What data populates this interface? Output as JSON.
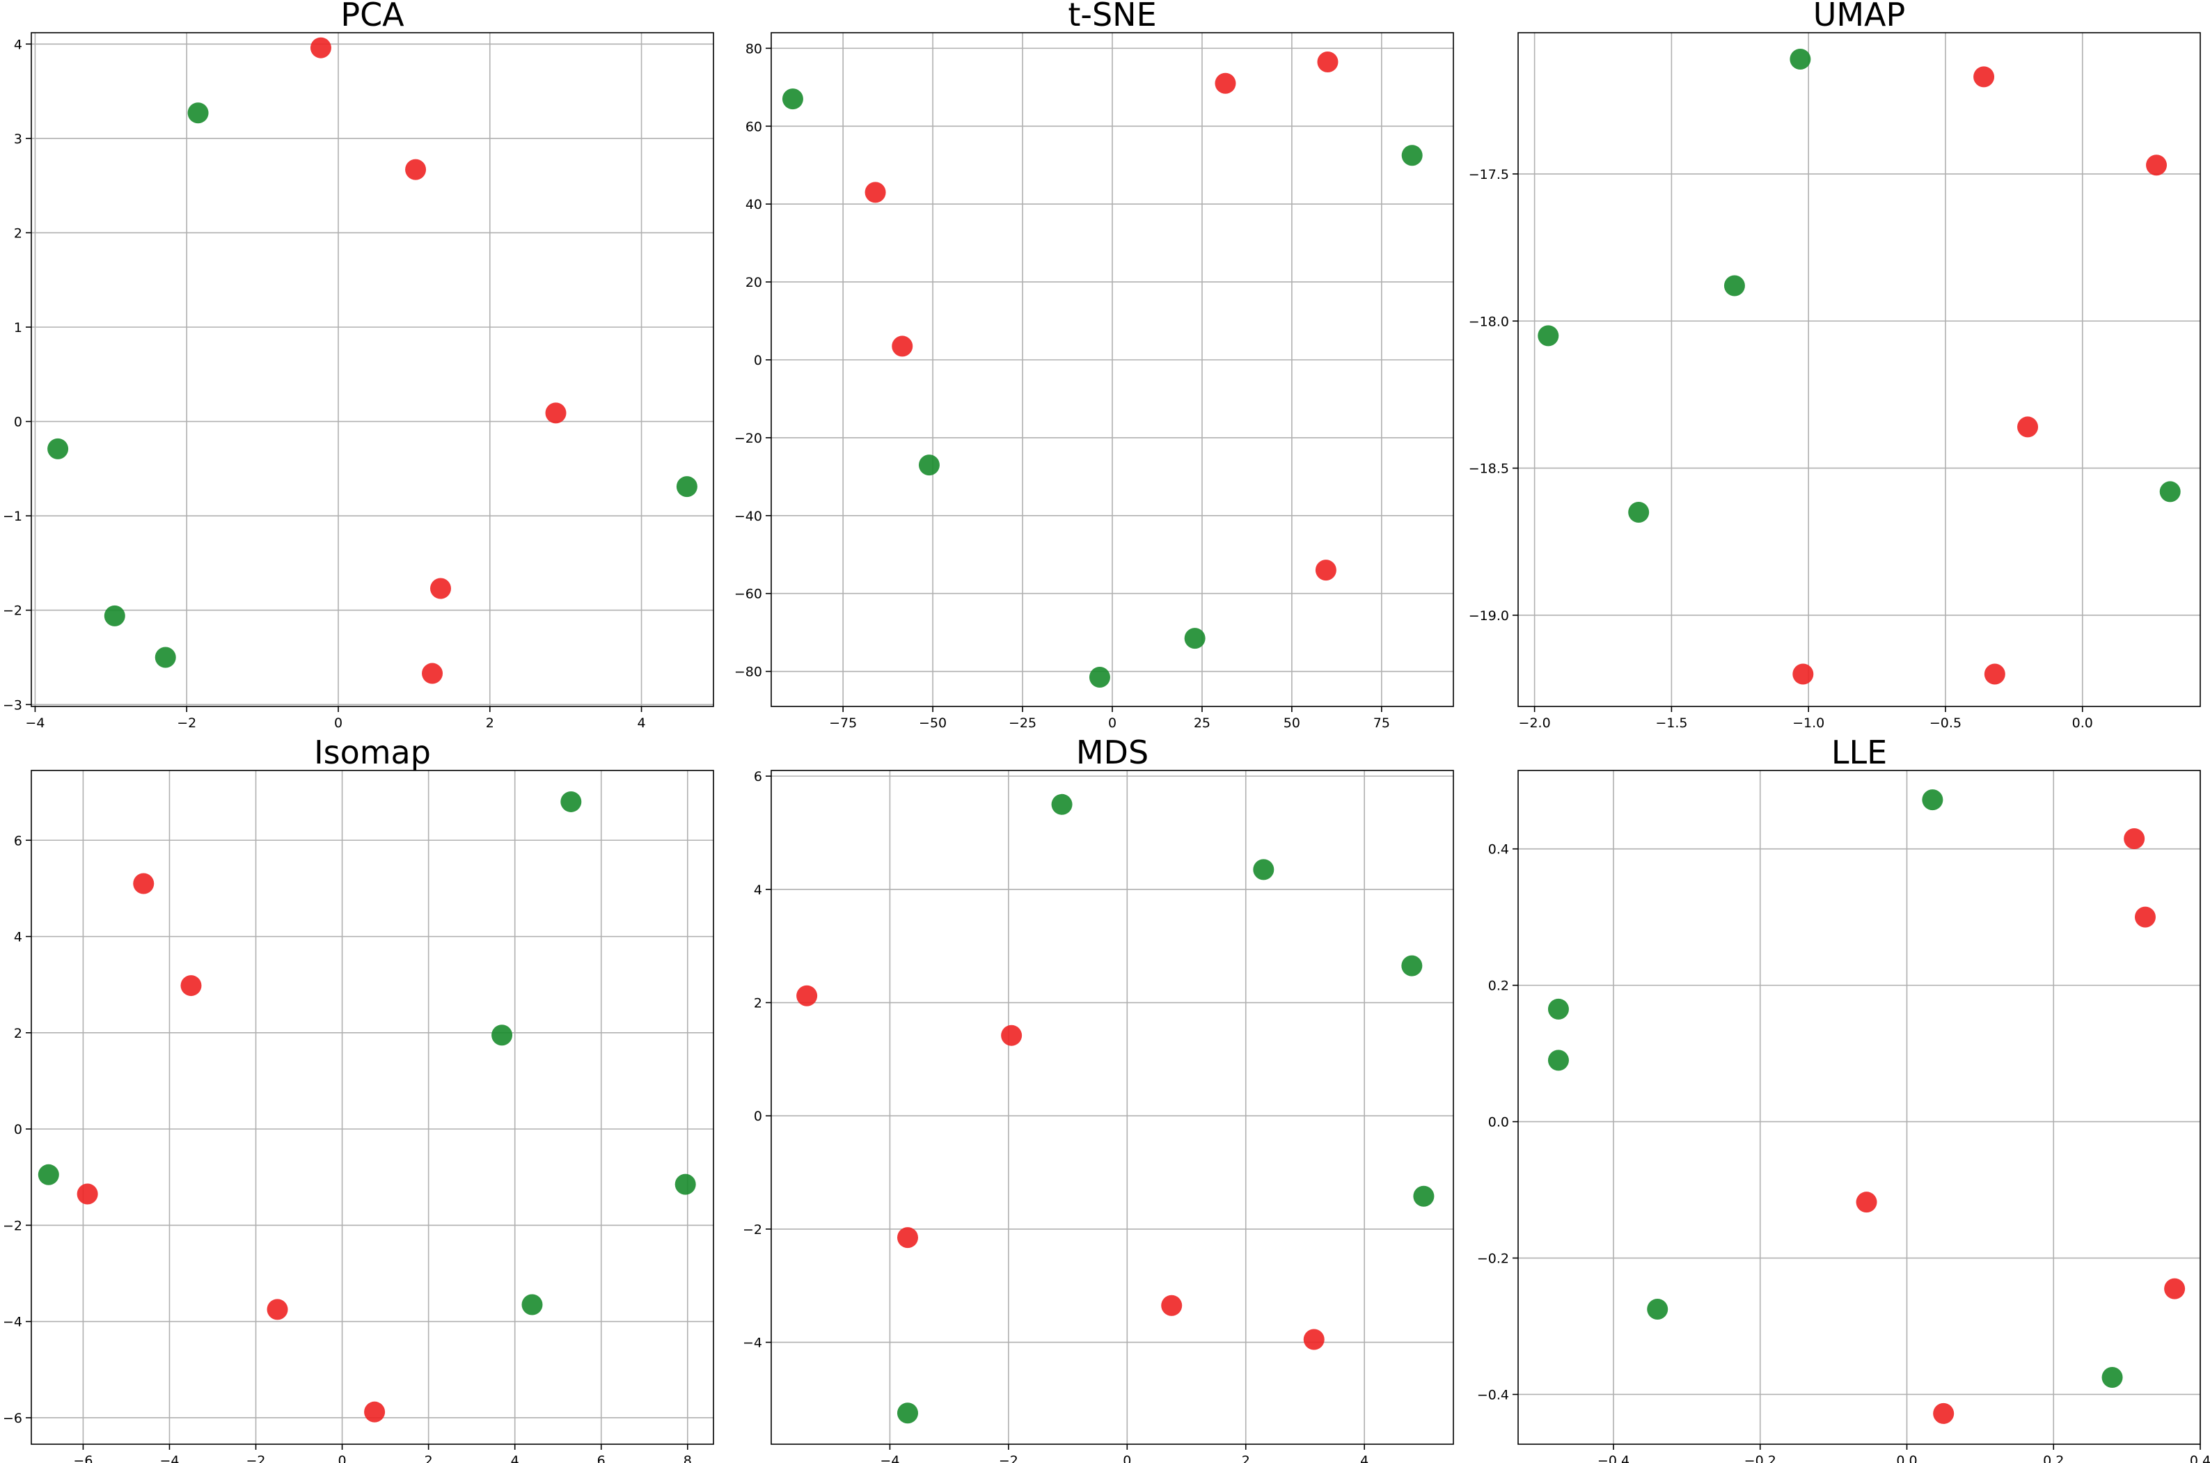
{
  "colors": {
    "green": "#1a8c2e",
    "red": "#ee2424"
  },
  "chart_data": [
    {
      "type": "scatter",
      "title": "PCA",
      "xlim": [
        -4.05,
        4.95
      ],
      "ylim": [
        -3.02,
        4.12
      ],
      "xticks": [
        -4,
        -2,
        0,
        2,
        4
      ],
      "xticklabels": [
        "−4",
        "−2",
        "0",
        "2",
        "4"
      ],
      "yticks": [
        -3,
        -2,
        -1,
        0,
        1,
        2,
        3,
        4
      ],
      "yticklabels": [
        "−3",
        "−2",
        "−1",
        "0",
        "1",
        "2",
        "3",
        "4"
      ],
      "grid": true,
      "series": [
        {
          "color": "green",
          "x": [
            -1.85,
            -3.7,
            -2.95,
            -2.28,
            4.6
          ],
          "y": [
            3.27,
            -0.29,
            -2.06,
            -2.5,
            -0.69
          ]
        },
        {
          "color": "red",
          "x": [
            -0.23,
            1.02,
            2.87,
            1.35,
            1.24
          ],
          "y": [
            3.96,
            2.67,
            0.09,
            -1.77,
            -2.67
          ]
        }
      ]
    },
    {
      "type": "scatter",
      "title": "t-SNE",
      "xlim": [
        -95,
        95
      ],
      "ylim": [
        -89,
        84
      ],
      "xticks": [
        -75,
        -50,
        -25,
        0,
        25,
        50,
        75
      ],
      "xticklabels": [
        "−75",
        "−50",
        "−25",
        "0",
        "25",
        "50",
        "75"
      ],
      "yticks": [
        -80,
        -60,
        -40,
        -20,
        0,
        20,
        40,
        60,
        80
      ],
      "yticklabels": [
        "−80",
        "−60",
        "−40",
        "−20",
        "0",
        "20",
        "40",
        "60",
        "80"
      ],
      "grid": true,
      "series": [
        {
          "color": "green",
          "x": [
            -89,
            -51,
            -3.5,
            23,
            83.5
          ],
          "y": [
            67,
            -27,
            -81.5,
            -71.5,
            52.5
          ]
        },
        {
          "color": "red",
          "x": [
            -66,
            -58.5,
            31.5,
            60,
            59.5
          ],
          "y": [
            43,
            3.5,
            71,
            76.5,
            -54
          ]
        }
      ]
    },
    {
      "type": "scatter",
      "title": "UMAP",
      "xlim": [
        -2.06,
        0.43
      ],
      "ylim": [
        -19.31,
        -17.02
      ],
      "xticks": [
        -2.0,
        -1.5,
        -1.0,
        -0.5,
        0.0
      ],
      "xticklabels": [
        "−2.0",
        "−1.5",
        "−1.0",
        "−0.5",
        "0.0"
      ],
      "yticks": [
        -19.0,
        -18.5,
        -18.0,
        -17.5
      ],
      "yticklabels": [
        "−19.0",
        "−18.5",
        "−18.0",
        "−17.5"
      ],
      "grid": true,
      "series": [
        {
          "color": "green",
          "x": [
            -1.03,
            -1.27,
            -1.95,
            -1.62,
            0.32
          ],
          "y": [
            -17.11,
            -17.88,
            -18.05,
            -18.65,
            -18.58
          ]
        },
        {
          "color": "red",
          "x": [
            -0.36,
            0.27,
            -0.2,
            -1.02,
            -0.32
          ],
          "y": [
            -17.17,
            -17.47,
            -18.36,
            -19.2,
            -19.2
          ]
        }
      ]
    },
    {
      "type": "scatter",
      "title": "Isomap",
      "xlim": [
        -7.2,
        8.6
      ],
      "ylim": [
        -6.55,
        7.45
      ],
      "xticks": [
        -6,
        -4,
        -2,
        0,
        2,
        4,
        6,
        8
      ],
      "xticklabels": [
        "−6",
        "−4",
        "−2",
        "0",
        "2",
        "4",
        "6",
        "8"
      ],
      "yticks": [
        -6,
        -4,
        -2,
        0,
        2,
        4,
        6
      ],
      "yticklabels": [
        "−6",
        "−4",
        "−2",
        "0",
        "2",
        "4",
        "6"
      ],
      "grid": true,
      "series": [
        {
          "color": "green",
          "x": [
            5.3,
            3.7,
            -6.8,
            7.95,
            4.4
          ],
          "y": [
            6.8,
            1.95,
            -0.95,
            -1.15,
            -3.65
          ]
        },
        {
          "color": "red",
          "x": [
            -4.6,
            -3.5,
            -5.9,
            -1.5,
            0.75
          ],
          "y": [
            5.1,
            2.98,
            -1.35,
            -3.75,
            -5.88
          ]
        }
      ]
    },
    {
      "type": "scatter",
      "title": "MDS",
      "xlim": [
        -6.0,
        5.5
      ],
      "ylim": [
        -5.8,
        6.1
      ],
      "xticks": [
        -4,
        -2,
        0,
        2,
        4
      ],
      "xticklabels": [
        "−4",
        "−2",
        "0",
        "2",
        "4"
      ],
      "yticks": [
        -4,
        -2,
        0,
        2,
        4,
        6
      ],
      "yticklabels": [
        "−4",
        "−2",
        "0",
        "2",
        "4",
        "6"
      ],
      "grid": true,
      "series": [
        {
          "color": "green",
          "x": [
            -1.1,
            2.3,
            4.8,
            5.0,
            -3.7
          ],
          "y": [
            5.5,
            4.35,
            2.65,
            -1.42,
            -5.25
          ]
        },
        {
          "color": "red",
          "x": [
            -5.4,
            -1.95,
            -3.7,
            0.75,
            3.15
          ],
          "y": [
            2.12,
            1.42,
            -2.15,
            -3.35,
            -3.95
          ]
        }
      ]
    },
    {
      "type": "scatter",
      "title": "LLE",
      "xlim": [
        -0.53,
        0.4
      ],
      "ylim": [
        -0.473,
        0.515
      ],
      "xticks": [
        -0.4,
        -0.2,
        0.0,
        0.2,
        0.4
      ],
      "xticklabels": [
        "−0.4",
        "−0.2",
        "0.0",
        "0.2",
        "0.4"
      ],
      "yticks": [
        -0.4,
        -0.2,
        0.0,
        0.2,
        0.4
      ],
      "yticklabels": [
        "−0.4",
        "−0.2",
        "0.0",
        "0.2",
        "0.4"
      ],
      "grid": true,
      "series": [
        {
          "color": "green",
          "x": [
            0.035,
            -0.475,
            -0.475,
            -0.34,
            0.28
          ],
          "y": [
            0.472,
            0.165,
            0.09,
            -0.275,
            -0.375
          ]
        },
        {
          "color": "red",
          "x": [
            0.31,
            0.325,
            -0.055,
            0.365,
            0.05
          ],
          "y": [
            0.415,
            0.3,
            -0.118,
            -0.245,
            -0.428
          ]
        }
      ]
    }
  ]
}
